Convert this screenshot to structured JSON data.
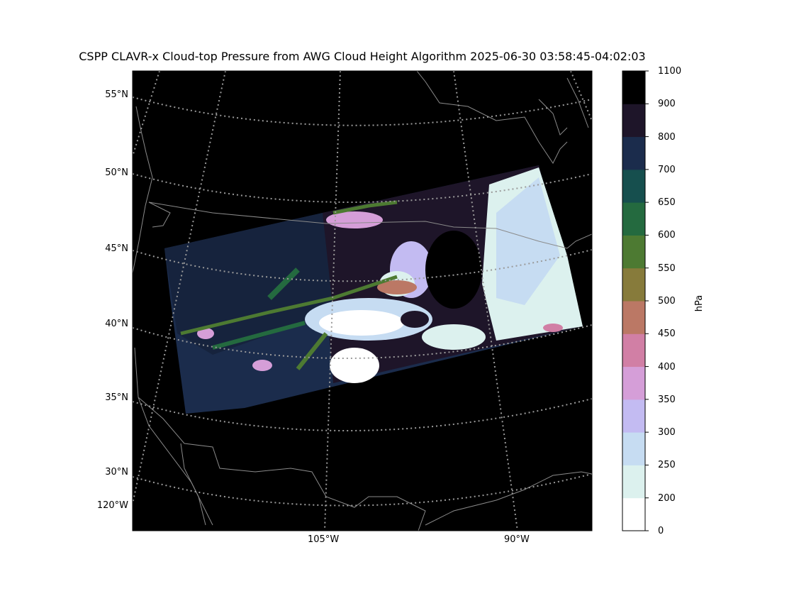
{
  "title": "CSPP CLAVR-x Cloud-top Pressure from AWG Cloud Height Algorithm 2025-06-30 03:58:45-04:02:03",
  "lat_labels": [
    "55°N",
    "50°N",
    "45°N",
    "40°N",
    "35°N",
    "30°N"
  ],
  "lon_labels": [
    "120°W",
    "105°W",
    "90°W"
  ],
  "colorbar": {
    "label": "hPa",
    "ticks": [
      "0",
      "200",
      "250",
      "300",
      "350",
      "400",
      "450",
      "500",
      "550",
      "600",
      "650",
      "700",
      "800",
      "900",
      "1100"
    ],
    "colors": [
      "#ffffff",
      "#dcf1ee",
      "#c6dcf2",
      "#c3bbf2",
      "#d59ed8",
      "#d17fa5",
      "#bb7865",
      "#877b3b",
      "#4d7a32",
      "#246a3f",
      "#164f4e",
      "#1b2c4c",
      "#1e1529",
      "#000000"
    ]
  },
  "colors": {
    "map_background": "#000000",
    "grid": "#9a9a9a",
    "coast": "#8a8a8a"
  }
}
